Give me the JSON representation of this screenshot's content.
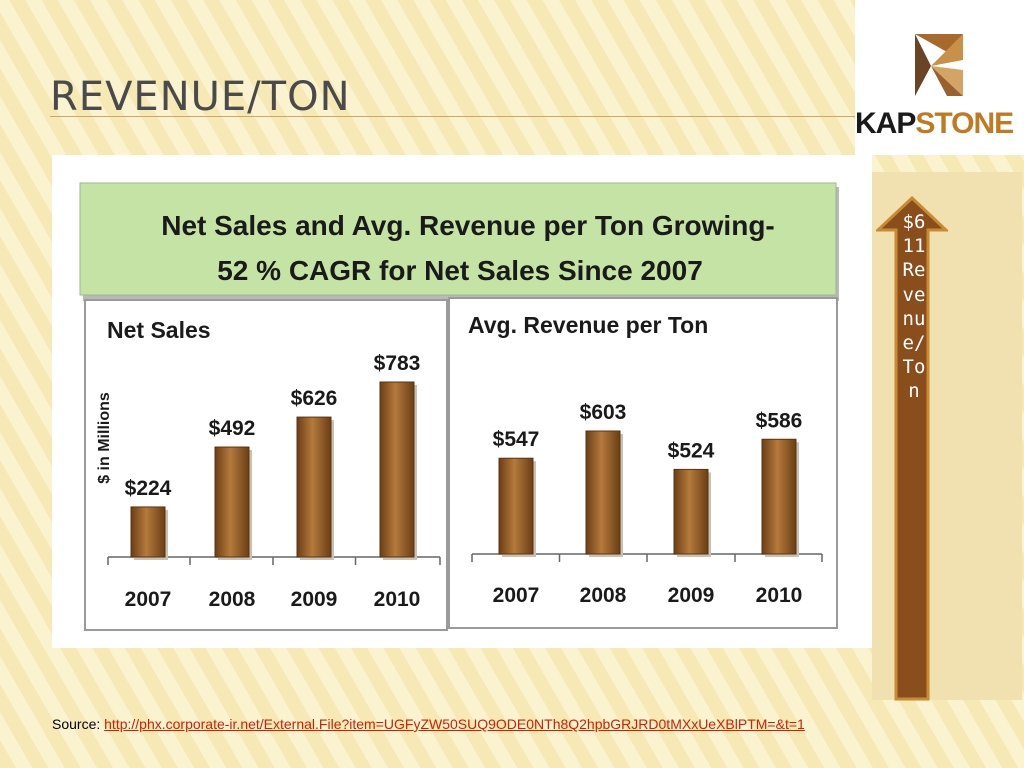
{
  "slide": {
    "title": "REVENUE/TON",
    "logo_text_a": "KAP",
    "logo_text_b": "STONE",
    "arrow_callout": "$611 Revenue/Ton",
    "source_label": "Source:",
    "source_url": "http://phx.corporate-ir.net/External.File?item=UGFyZW50SUQ9ODE0NTh8Q2hpbGRJRD0tMXxUeXBlPTM=&t=1"
  },
  "colors": {
    "header_green": "#c4e3a4",
    "bar_brown": "#8a5523",
    "arrow_brown": "#8a4e1c",
    "arrow_border": "#c98a35",
    "logo_orange": "#c07a22"
  },
  "chart_data": [
    {
      "type": "bar",
      "title": "Net Sales and Avg. Revenue per Ton Growing-",
      "subtitle": "52 % CAGR for Net Sales Since 2007",
      "panel_title": "Net Sales",
      "ylabel": "$ in Millions",
      "categories": [
        "2007",
        "2008",
        "2009",
        "2010"
      ],
      "values": [
        224,
        492,
        626,
        783
      ],
      "data_labels": [
        "$224",
        "$492",
        "$626",
        "$783"
      ],
      "ylim": [
        0,
        850
      ]
    },
    {
      "type": "bar",
      "panel_title": "Avg. Revenue per Ton",
      "categories": [
        "2007",
        "2008",
        "2009",
        "2010"
      ],
      "values": [
        547,
        603,
        524,
        586
      ],
      "data_labels": [
        "$547",
        "$603",
        "$524",
        "$586"
      ],
      "ylim": [
        350,
        700
      ]
    }
  ]
}
